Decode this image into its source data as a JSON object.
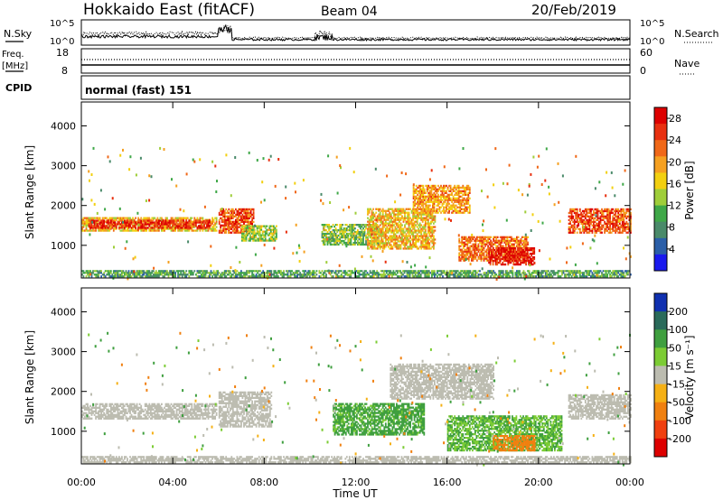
{
  "header": {
    "station": "Hokkaido East (fitACF)",
    "beam": "Beam 04",
    "date": "20/Feb/2019"
  },
  "noise_panel": {
    "left_label": "N.Sky",
    "right_label": "N.Search",
    "ticks_left": [
      "10^5",
      "10^0"
    ],
    "ticks_right": [
      "10^5",
      "10^0"
    ]
  },
  "freq_panel": {
    "left_label_1": "Freq.",
    "left_label_2": "[MHz]",
    "ticks_left": [
      "18",
      "8"
    ],
    "ticks_right": [
      "60",
      "0"
    ],
    "right_label": "Nave"
  },
  "cpid_panel": {
    "label": "CPID",
    "mode_text": "normal (fast) 151"
  },
  "chart_data": [
    {
      "type": "heatmap",
      "quantity": "Power",
      "ylabel": "Slant Range [km]",
      "yticks": [
        "1000",
        "2000",
        "3000",
        "4000"
      ],
      "ylim": [
        180,
        4600
      ],
      "xlim_hours": [
        0,
        24
      ],
      "colorbar_label": "Power [dB]",
      "colorbar_ticks": [
        "4",
        "8",
        "12",
        "16",
        "20",
        "24",
        "28"
      ],
      "colorscale": [
        "#1a1aee",
        "#2b5fa8",
        "#4a8a6a",
        "#3fa848",
        "#9fce3a",
        "#f2d010",
        "#f5a020",
        "#f06818",
        "#e83010",
        "#dd0000"
      ],
      "regions": [
        {
          "t0": 0.0,
          "t1": 5.9,
          "r0": 1350,
          "r1": 1700,
          "value": 18
        },
        {
          "t0": 0.3,
          "t1": 5.6,
          "r0": 1420,
          "r1": 1620,
          "value": 26
        },
        {
          "t0": 6.0,
          "t1": 7.5,
          "r0": 1300,
          "r1": 1900,
          "value": 24
        },
        {
          "t0": 7.0,
          "t1": 8.5,
          "r0": 1100,
          "r1": 1500,
          "value": 14
        },
        {
          "t0": 10.5,
          "t1": 13.0,
          "r0": 1000,
          "r1": 1500,
          "value": 12
        },
        {
          "t0": 12.5,
          "t1": 15.5,
          "r0": 900,
          "r1": 1900,
          "value": 18
        },
        {
          "t0": 14.5,
          "t1": 17.0,
          "r0": 1800,
          "r1": 2500,
          "value": 20
        },
        {
          "t0": 16.5,
          "t1": 19.5,
          "r0": 600,
          "r1": 1200,
          "value": 22
        },
        {
          "t0": 17.8,
          "t1": 19.8,
          "r0": 500,
          "r1": 950,
          "value": 28
        },
        {
          "t0": 21.3,
          "t1": 24.0,
          "r0": 1300,
          "r1": 1900,
          "value": 24
        },
        {
          "t0": 0.0,
          "t1": 24.0,
          "r0": 200,
          "r1": 350,
          "value": 10
        }
      ]
    },
    {
      "type": "heatmap",
      "quantity": "Velocity",
      "ylabel": "Slant Range [km]",
      "yticks": [
        "1000",
        "2000",
        "3000",
        "4000"
      ],
      "ylim": [
        180,
        4600
      ],
      "xlim_hours": [
        0,
        24
      ],
      "xticks": [
        "00:00",
        "04:00",
        "08:00",
        "12:00",
        "16:00",
        "20:00",
        "00:00"
      ],
      "xlabel": "Time UT",
      "colorbar_label": "Velocity [m s⁻¹]",
      "colorbar_ticks": [
        "200",
        "100",
        "50",
        "15",
        "-15",
        "-50",
        "-100",
        "-200"
      ],
      "colorscale": [
        "#1030b0",
        "#2a6a5a",
        "#3f9f3f",
        "#7ccc34",
        "#bcbcb0",
        "#f5b015",
        "#f08010",
        "#f04010",
        "#dd0000"
      ],
      "regions": [
        {
          "t0": 0.0,
          "t1": 5.9,
          "r0": 1300,
          "r1": 1700,
          "value": 0
        },
        {
          "t0": 6.0,
          "t1": 8.3,
          "r0": 1100,
          "r1": 2000,
          "value": 0
        },
        {
          "t0": 11.0,
          "t1": 15.0,
          "r0": 900,
          "r1": 1700,
          "value": 40
        },
        {
          "t0": 13.5,
          "t1": 18.0,
          "r0": 1800,
          "r1": 2700,
          "value": 0
        },
        {
          "t0": 16.0,
          "t1": 21.0,
          "r0": 500,
          "r1": 1400,
          "value": 30
        },
        {
          "t0": 18.0,
          "t1": 19.8,
          "r0": 500,
          "r1": 900,
          "value": -60
        },
        {
          "t0": 21.3,
          "t1": 24.0,
          "r0": 1300,
          "r1": 1900,
          "value": 0
        },
        {
          "t0": 0.0,
          "t1": 24.0,
          "r0": 200,
          "r1": 350,
          "value": 0
        }
      ]
    }
  ]
}
